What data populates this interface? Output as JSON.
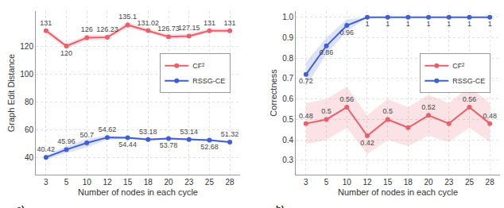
{
  "chart_data": [
    {
      "type": "line",
      "annotation": "a)",
      "x_label": "Number of nodes in each cycle",
      "y_label": "Graph Edit Distance",
      "categories": [
        "3",
        "5",
        "10",
        "12",
        "15",
        "18",
        "20",
        "23",
        "25",
        "28"
      ],
      "ylim": [
        28,
        145
      ],
      "yticks": [
        40,
        60,
        80,
        100,
        120
      ],
      "grid": true,
      "legend": "center right",
      "data_labels": true,
      "series": [
        {
          "name": "RSSG-CE",
          "color": "#3f5fd6",
          "marker": "circle",
          "values": [
            40.42,
            45.96,
            50.7,
            54.62,
            54.44,
            53.18,
            53.78,
            53.14,
            52.68,
            51.32
          ],
          "lower": [
            39,
            43.5,
            47.5,
            53,
            53.5,
            52.5,
            53,
            52.5,
            52,
            50.8
          ],
          "upper": [
            41.8,
            48.5,
            53.5,
            56,
            55.3,
            53.8,
            54.5,
            53.8,
            53.3,
            51.8
          ]
        },
        {
          "name": "CF²",
          "color": "#e8606a",
          "marker": "circle",
          "values": [
            131,
            120,
            126,
            126.23,
            135.1,
            131.02,
            126.73,
            127.15,
            131,
            131
          ],
          "lower": [
            129,
            118,
            124,
            124.5,
            133,
            129.5,
            125,
            125.5,
            129.5,
            129.5
          ],
          "upper": [
            133,
            122,
            128,
            128,
            137,
            132.5,
            128.5,
            129,
            132.5,
            132.5
          ]
        }
      ]
    },
    {
      "type": "line",
      "annotation": "b)",
      "x_label": "Number of nodes in each cycle",
      "y_label": "Correctness",
      "categories": [
        "3",
        "5",
        "10",
        "12",
        "15",
        "18",
        "20",
        "23",
        "25",
        "28"
      ],
      "ylim": [
        0.23,
        1.03
      ],
      "yticks": [
        0.3,
        0.4,
        0.5,
        0.6,
        0.7,
        0.8,
        0.9,
        {
          "value": 1,
          "label": "1.0"
        }
      ],
      "grid": true,
      "legend": "center right",
      "data_labels": true,
      "series": [
        {
          "name": "RSSG-CE",
          "color": "#3f5fd6",
          "marker": "circle",
          "values": [
            0.72,
            0.86,
            0.96,
            1,
            1,
            1,
            1,
            1,
            1,
            1
          ],
          "lower": [
            0.66,
            0.82,
            0.93,
            1,
            1,
            1,
            1,
            1,
            1,
            1
          ],
          "upper": [
            0.78,
            0.9,
            0.99,
            1,
            1,
            1,
            1,
            1,
            1,
            1
          ]
        },
        {
          "name": "CF²",
          "color": "#e8606a",
          "marker": "circle",
          "values": [
            0.48,
            0.5,
            0.56,
            0.42,
            0.5,
            0.46,
            0.52,
            0.48,
            0.56,
            0.48
          ],
          "value_labels": [
            "0.48",
            "0.5",
            "0.56",
            "0.42",
            "0.5",
            null,
            "0.52",
            null,
            "0.56",
            "0.48"
          ],
          "lower": [
            0.38,
            0.4,
            0.46,
            0.33,
            0.4,
            0.37,
            0.42,
            0.39,
            0.46,
            0.39
          ],
          "upper": [
            0.58,
            0.6,
            0.66,
            0.52,
            0.6,
            0.56,
            0.62,
            0.58,
            0.66,
            0.58
          ]
        }
      ]
    }
  ]
}
